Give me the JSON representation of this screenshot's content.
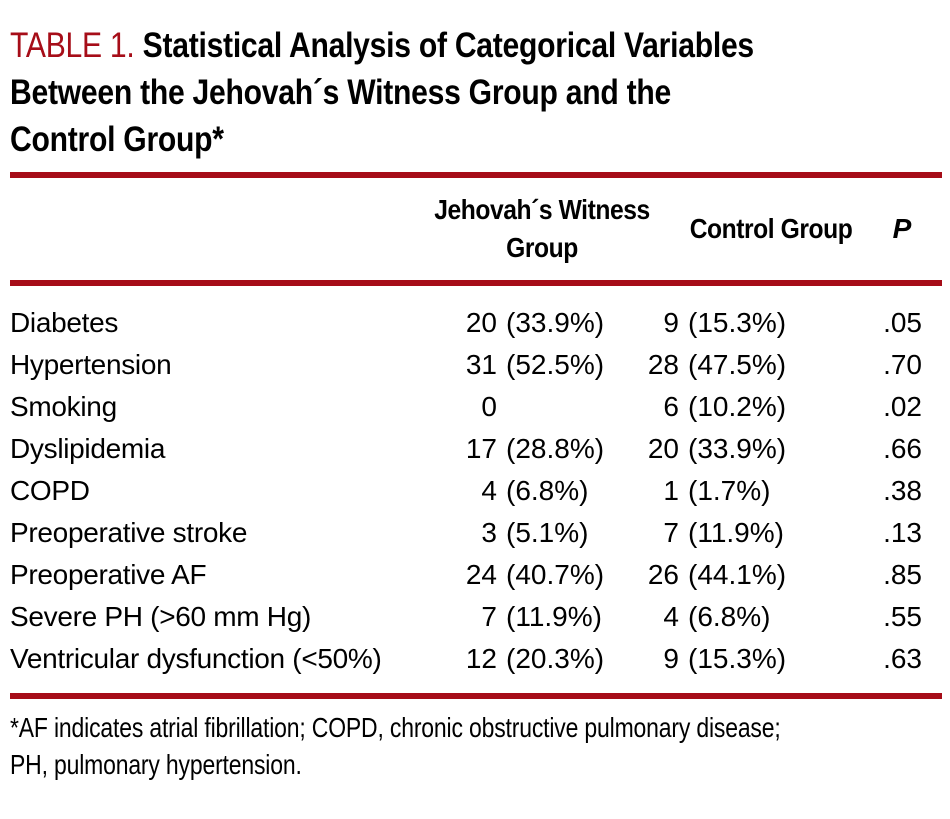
{
  "colors": {
    "accent_red": "#A60D18",
    "text": "#000000",
    "background": "#FFFFFF"
  },
  "title": {
    "label": "TABLE 1.",
    "line1_rest": " Statistical Analysis of Categorical Variables",
    "line2": "Between the Jehovah´s Witness Group and the",
    "line3": "Control Group*"
  },
  "table": {
    "columns": {
      "group1": "Jehovah´s Witness Group",
      "group2": "Control Group",
      "p": "P"
    },
    "rows": [
      {
        "label": "Diabetes",
        "jw_count": "20",
        "jw_pct": "(33.9%)",
        "ctrl_count": "9",
        "ctrl_pct": "(15.3%)",
        "p": ".05"
      },
      {
        "label": "Hypertension",
        "jw_count": "31",
        "jw_pct": "(52.5%)",
        "ctrl_count": "28",
        "ctrl_pct": "(47.5%)",
        "p": ".70"
      },
      {
        "label": "Smoking",
        "jw_count": "0",
        "jw_pct": "",
        "ctrl_count": "6",
        "ctrl_pct": "(10.2%)",
        "p": ".02"
      },
      {
        "label": "Dyslipidemia",
        "jw_count": "17",
        "jw_pct": "(28.8%)",
        "ctrl_count": "20",
        "ctrl_pct": "(33.9%)",
        "p": ".66"
      },
      {
        "label": "COPD",
        "jw_count": "4",
        "jw_pct": "(6.8%)",
        "ctrl_count": "1",
        "ctrl_pct": "(1.7%)",
        "p": ".38"
      },
      {
        "label": "Preoperative stroke",
        "jw_count": "3",
        "jw_pct": "(5.1%)",
        "ctrl_count": "7",
        "ctrl_pct": "(11.9%)",
        "p": ".13"
      },
      {
        "label": "Preoperative AF",
        "jw_count": "24",
        "jw_pct": "(40.7%)",
        "ctrl_count": "26",
        "ctrl_pct": "(44.1%)",
        "p": ".85"
      },
      {
        "label": "Severe PH (>60 mm  Hg)",
        "jw_count": "7",
        "jw_pct": "(11.9%)",
        "ctrl_count": "4",
        "ctrl_pct": "(6.8%)",
        "p": ".55"
      },
      {
        "label": "Ventricular dysfunction (<50%)",
        "jw_count": "12",
        "jw_pct": "(20.3%)",
        "ctrl_count": "9",
        "ctrl_pct": "(15.3%)",
        "p": ".63"
      }
    ]
  },
  "footnote": {
    "line1": "*AF indicates atrial fibrillation; COPD, chronic obstructive pulmonary disease;",
    "line2": "PH, pulmonary hypertension."
  }
}
